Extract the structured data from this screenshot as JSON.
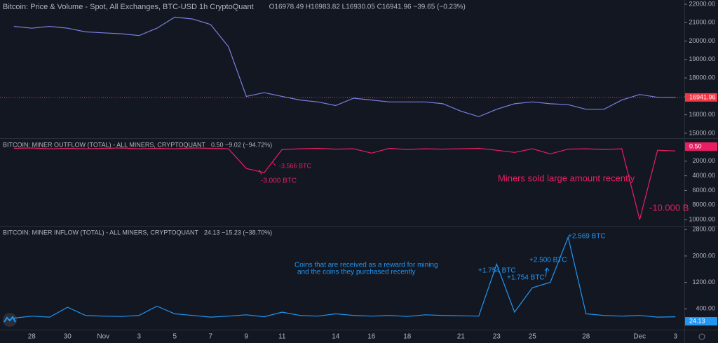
{
  "chart_data": [
    {
      "type": "line",
      "title": "Bitcoin: Price & Volume - Spot, All Exchanges, BTC-USD  1h  CryptoQuant",
      "legend_values": "O16978.49 H16983.82 L16930.05 C16941.96 −39.65 (−0.23%)",
      "color": "#7b7fe0",
      "values": [
        20800,
        20700,
        20800,
        20700,
        20500,
        20450,
        20400,
        20300,
        20700,
        21300,
        21200,
        20900,
        19700,
        17000,
        17200,
        17000,
        16800,
        16700,
        16500,
        16900,
        16800,
        16700,
        16700,
        16700,
        16600,
        16200,
        15900,
        16300,
        16600,
        16700,
        16600,
        16550,
        16300,
        16300,
        16800,
        17100,
        16950,
        16950
      ],
      "ylim": [
        14730,
        22230
      ],
      "yticks": [
        {
          "value": 15000,
          "label": "15000.00"
        },
        {
          "value": 16000,
          "label": "16000.00"
        },
        {
          "value": 17000,
          "label": "17000.00"
        },
        {
          "value": 18000,
          "label": "18000.00"
        },
        {
          "value": 19000,
          "label": "19000.00"
        },
        {
          "value": 20000,
          "label": "20000.00"
        },
        {
          "value": 21000,
          "label": "21000.00"
        },
        {
          "value": 22000,
          "label": "22000.00"
        }
      ],
      "last_value": 16941.96,
      "last_color": "#f23645"
    },
    {
      "type": "line",
      "title": "BITCOIN: MINER OUTFLOW (TOTAL) - ALL MINERS, CRYPTOQUANT",
      "legend_values": "0.50 −9.02 (−94.72%)",
      "color": "#e91e63",
      "inverted": true,
      "values": [
        250,
        200,
        300,
        250,
        300,
        250,
        200,
        300,
        250,
        300,
        200,
        250,
        300,
        3000,
        3566,
        400,
        300,
        250,
        350,
        300,
        900,
        250,
        400,
        300,
        350,
        300,
        250,
        500,
        800,
        300,
        1000,
        350,
        300,
        400,
        300,
        10000,
        500,
        600
      ],
      "ylim": [
        -1050,
        10850
      ],
      "yticks": [
        {
          "value": 2000,
          "label": "2000.00"
        },
        {
          "value": 4000,
          "label": "4000.00"
        },
        {
          "value": 6000,
          "label": "6000.00"
        },
        {
          "value": 8000,
          "label": "8000.00"
        },
        {
          "value": 10000,
          "label": "10000.00"
        }
      ],
      "last_value": {
        "value": 0.5,
        "label": "0.50"
      },
      "last_color": "#e91e63",
      "annotations": [
        "-3.000 BTC",
        "-3.566 BTC",
        "Miners sold large amount recently",
        "-10.000 B"
      ]
    },
    {
      "type": "line",
      "title": "BITCOIN: MINER INFLOW (TOTAL) - ALL MINERS, CRYPTOQUANT",
      "legend_values": "24.13 −15.23 (−38.70%)",
      "color": "#2196f3",
      "values": [
        120,
        180,
        150,
        450,
        200,
        180,
        170,
        200,
        480,
        250,
        200,
        150,
        180,
        220,
        160,
        300,
        200,
        180,
        250,
        200,
        180,
        200,
        170,
        220,
        200,
        190,
        180,
        1754,
        300,
        1040,
        1200,
        2569,
        250,
        200,
        180,
        200,
        150,
        160
      ],
      "ylim": [
        -230,
        2890
      ],
      "yticks": [
        {
          "value": 400,
          "label": "400.00"
        },
        {
          "value": 1200,
          "label": "1200.00"
        },
        {
          "value": 2000,
          "label": "2000.00"
        },
        {
          "value": 2800,
          "label": "2800.00"
        }
      ],
      "last_value": 24.13,
      "last_color": "#2196f3",
      "annotations": [
        "+1.754 BTC",
        "+1.754 BTC",
        "+2.500 BTC",
        "+2.569 BTC",
        "Coins that are received as a reward for mining",
        "and the coins they purchased recently"
      ],
      "categories": [
        null,
        "28",
        null,
        "30",
        null,
        "Nov",
        null,
        "3",
        null,
        "5",
        null,
        "7",
        null,
        "9",
        null,
        "11",
        null,
        null,
        "14",
        null,
        "16",
        null,
        "18",
        null,
        null,
        "21",
        null,
        "23",
        null,
        "25",
        null,
        null,
        "28",
        null,
        null,
        "Dec",
        null,
        "3"
      ]
    }
  ]
}
